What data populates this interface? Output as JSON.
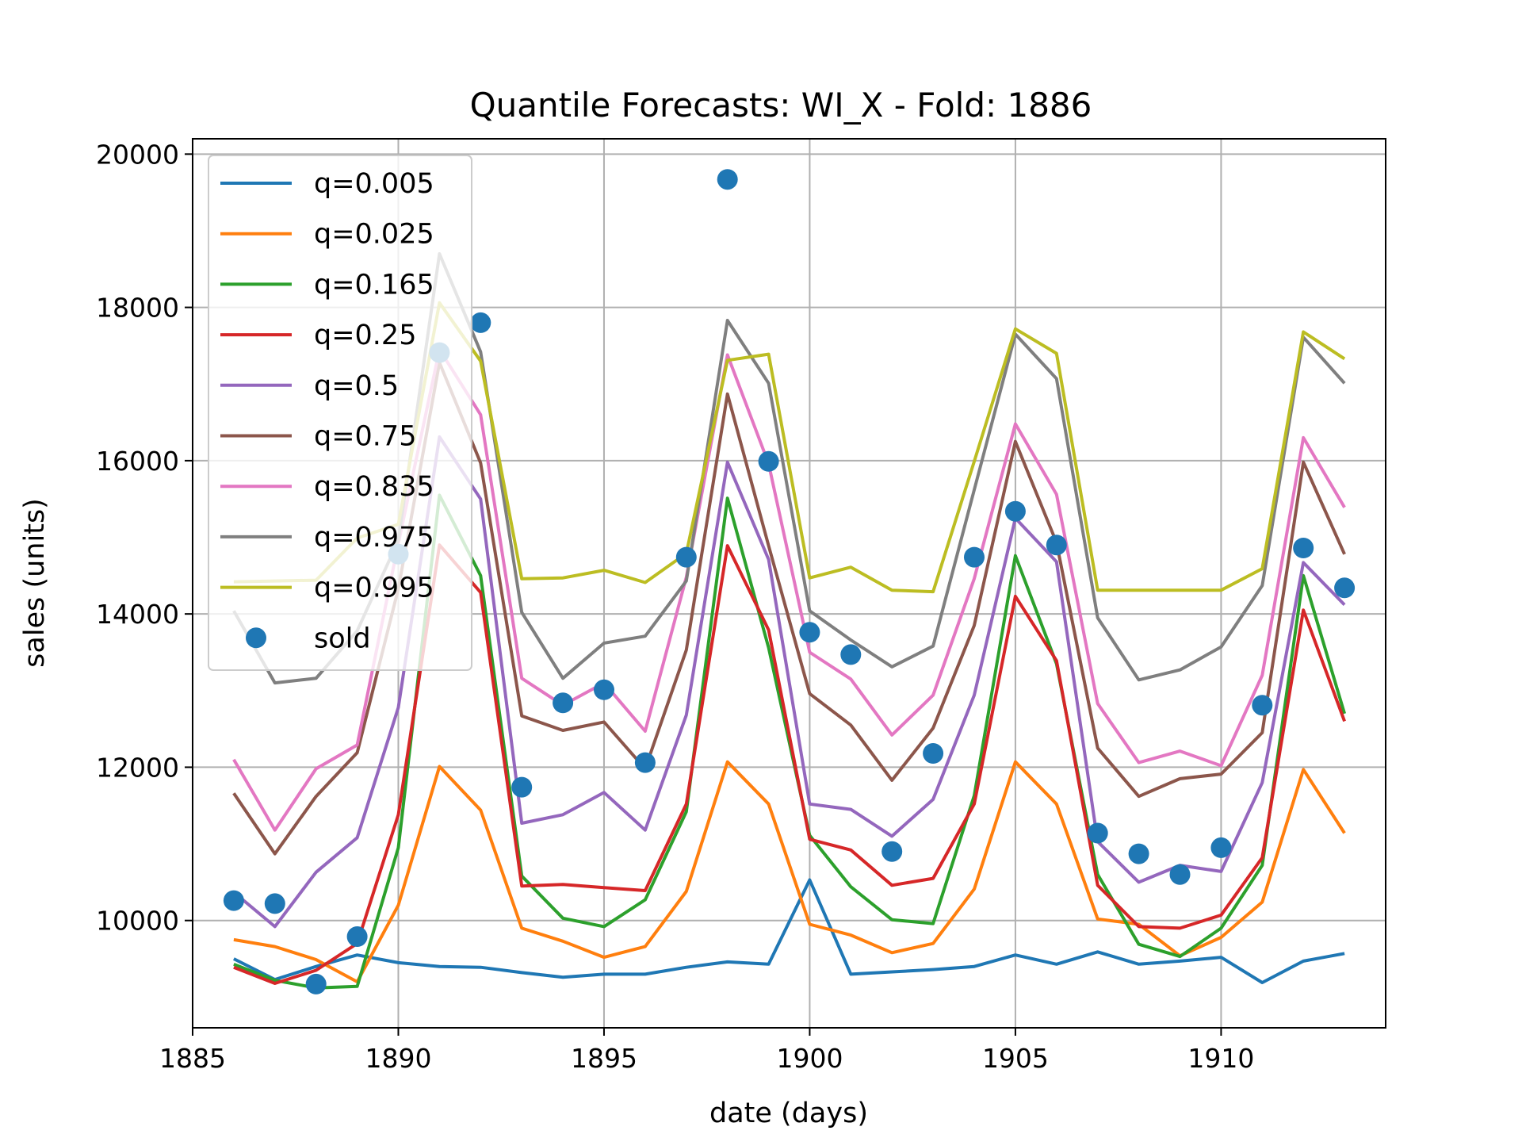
{
  "chart_data": {
    "type": "line",
    "title": "Quantile Forecasts: WI_X - Fold: 1886",
    "xlabel": "date (days)",
    "ylabel": "sales (units)",
    "xlim": [
      1885,
      1914
    ],
    "ylim": [
      8600,
      20200
    ],
    "xticks": [
      1885,
      1890,
      1895,
      1900,
      1905,
      1910
    ],
    "xtick_labels": [
      "1885",
      "1890",
      "1895",
      "1900",
      "1905",
      "1910"
    ],
    "yticks": [
      10000,
      12000,
      14000,
      16000,
      18000,
      20000
    ],
    "ytick_labels": [
      "10000",
      "12000",
      "14000",
      "16000",
      "18000",
      "20000"
    ],
    "grid": true,
    "legend_position": "upper-left",
    "x": [
      1886,
      1887,
      1888,
      1889,
      1890,
      1891,
      1892,
      1893,
      1894,
      1895,
      1896,
      1897,
      1898,
      1899,
      1900,
      1901,
      1902,
      1903,
      1904,
      1905,
      1906,
      1907,
      1908,
      1909,
      1910,
      1911,
      1912,
      1913
    ],
    "series": [
      {
        "name": "q=0.005",
        "color": "#1f77b4",
        "values": [
          9500,
          9230,
          9400,
          9550,
          9450,
          9400,
          9390,
          9320,
          9260,
          9300,
          9300,
          9390,
          9460,
          9430,
          10530,
          9300,
          9330,
          9360,
          9400,
          9550,
          9430,
          9590,
          9430,
          9470,
          9520,
          9190,
          9470,
          9570
        ]
      },
      {
        "name": "q=0.025",
        "color": "#ff7f0e",
        "values": [
          9750,
          9660,
          9490,
          9200,
          10200,
          12010,
          11440,
          9900,
          9730,
          9520,
          9660,
          10380,
          12070,
          11520,
          9950,
          9810,
          9580,
          9700,
          10410,
          12070,
          11520,
          10020,
          9950,
          9540,
          9780,
          10240,
          11970,
          11140
        ]
      },
      {
        "name": "q=0.165",
        "color": "#2ca02c",
        "values": [
          9430,
          9220,
          9120,
          9140,
          10950,
          15550,
          14500,
          10580,
          10030,
          9920,
          10270,
          11420,
          15510,
          13560,
          11110,
          10440,
          10010,
          9960,
          11630,
          14760,
          13350,
          10600,
          9690,
          9530,
          9900,
          10720,
          14500,
          12700
        ]
      },
      {
        "name": "q=0.25",
        "color": "#d62728",
        "values": [
          9390,
          9180,
          9350,
          9700,
          11380,
          14900,
          14280,
          10450,
          10470,
          10430,
          10390,
          11520,
          14890,
          13790,
          11060,
          10920,
          10460,
          10550,
          11520,
          14230,
          13390,
          10460,
          9920,
          9900,
          10070,
          10820,
          14050,
          12600
        ]
      },
      {
        "name": "q=0.5",
        "color": "#9467bd",
        "values": [
          10370,
          9920,
          10630,
          11080,
          12780,
          16310,
          15500,
          11270,
          11380,
          11670,
          11180,
          12680,
          15980,
          14710,
          11520,
          11450,
          11100,
          11580,
          12940,
          15250,
          14680,
          11030,
          10500,
          10720,
          10640,
          11800,
          14670,
          14120
        ]
      },
      {
        "name": "q=0.75",
        "color": "#8c564b",
        "values": [
          11660,
          10870,
          11620,
          12190,
          14330,
          17280,
          15970,
          12670,
          12480,
          12590,
          11980,
          13530,
          16870,
          14890,
          12960,
          12550,
          11830,
          12510,
          13850,
          16250,
          14930,
          12250,
          11620,
          11850,
          11910,
          12450,
          15980,
          14780
        ]
      },
      {
        "name": "q=0.835",
        "color": "#e377c2",
        "values": [
          12100,
          11180,
          11980,
          12290,
          14920,
          17450,
          16600,
          13160,
          12810,
          13100,
          12470,
          14480,
          17380,
          15960,
          13500,
          13150,
          12420,
          12940,
          14460,
          16480,
          15560,
          12830,
          12060,
          12210,
          12020,
          13200,
          16300,
          15390
        ]
      },
      {
        "name": "q=0.975",
        "color": "#7f7f7f",
        "values": [
          14040,
          13100,
          13160,
          13780,
          14960,
          18700,
          17420,
          14020,
          13160,
          13620,
          13710,
          14430,
          17830,
          17010,
          14040,
          13660,
          13310,
          13580,
          15620,
          17650,
          17070,
          13950,
          13140,
          13270,
          13570,
          14370,
          17610,
          17010
        ]
      },
      {
        "name": "q=0.995",
        "color": "#bcbd22",
        "values": [
          14420,
          14430,
          14440,
          14990,
          15170,
          18060,
          17300,
          14460,
          14470,
          14570,
          14410,
          14790,
          17310,
          17390,
          14470,
          14610,
          14310,
          14290,
          15990,
          17720,
          17400,
          14310,
          14310,
          14310,
          14310,
          14590,
          17680,
          17330
        ]
      }
    ],
    "scatter": {
      "name": "sold",
      "color": "#1f77b4",
      "points": [
        [
          1886,
          10260
        ],
        [
          1887,
          10220
        ],
        [
          1888,
          9170
        ],
        [
          1889,
          9790
        ],
        [
          1890,
          14780
        ],
        [
          1891,
          17410
        ],
        [
          1892,
          17800
        ],
        [
          1893,
          11740
        ],
        [
          1894,
          12840
        ],
        [
          1895,
          13010
        ],
        [
          1896,
          12060
        ],
        [
          1897,
          14740
        ],
        [
          1898,
          19670
        ],
        [
          1899,
          15990
        ],
        [
          1900,
          13760
        ],
        [
          1901,
          13470
        ],
        [
          1902,
          10900
        ],
        [
          1903,
          12180
        ],
        [
          1904,
          14740
        ],
        [
          1905,
          15340
        ],
        [
          1906,
          14900
        ],
        [
          1907,
          11140
        ],
        [
          1908,
          10870
        ],
        [
          1909,
          10600
        ],
        [
          1910,
          10950
        ],
        [
          1911,
          12810
        ],
        [
          1912,
          14860
        ],
        [
          1913,
          14340
        ]
      ]
    }
  }
}
